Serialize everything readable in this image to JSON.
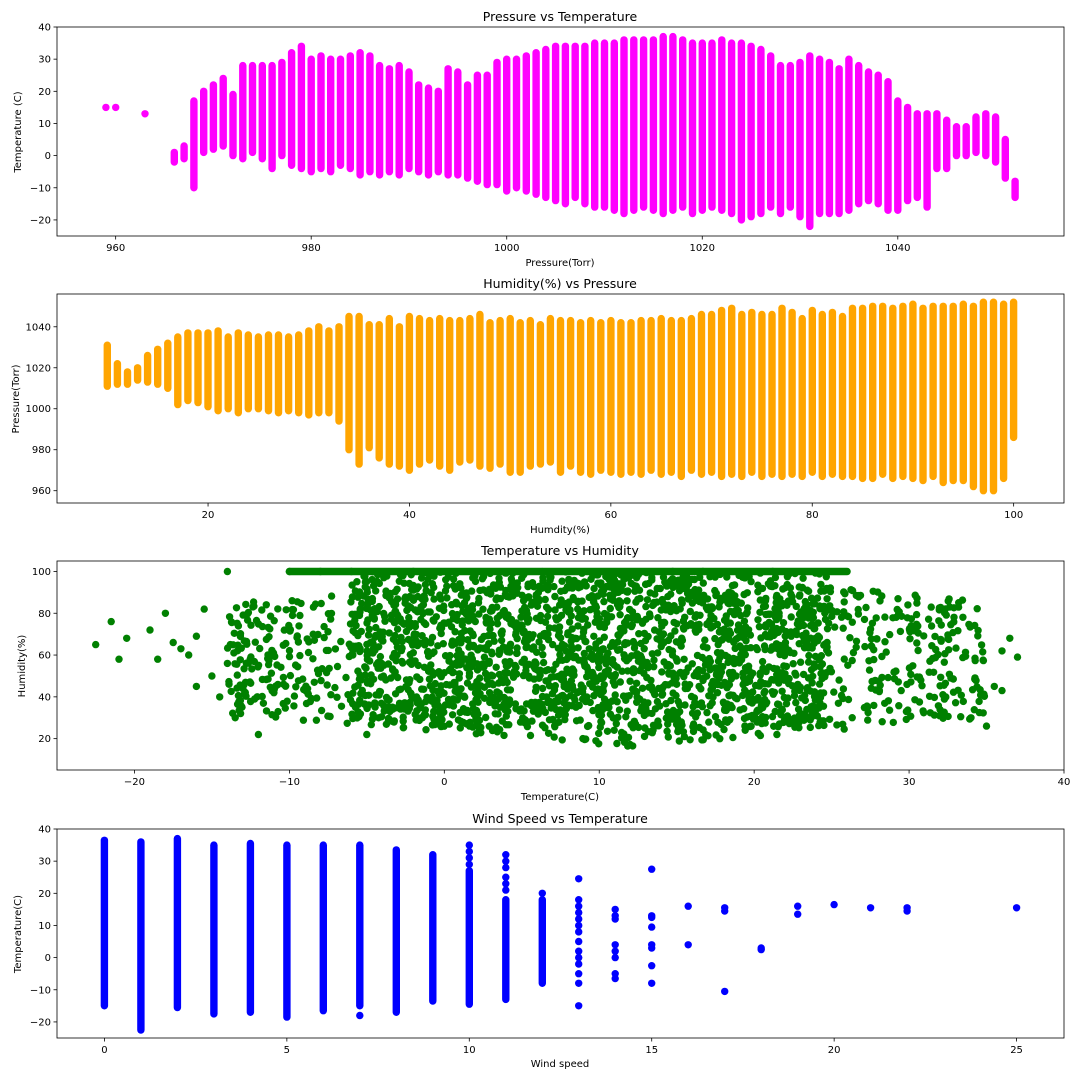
{
  "chart_data": [
    {
      "type": "scatter",
      "title": "Pressure vs Temperature",
      "xlabel": "Pressure(Torr)",
      "ylabel": "Temperature (C)",
      "xlim": [
        954,
        1057
      ],
      "ylim": [
        -25,
        40
      ],
      "xticks": [
        960,
        980,
        1000,
        1020,
        1040
      ],
      "yticks": [
        -20,
        -10,
        0,
        10,
        20,
        30,
        40
      ],
      "color": "#ff00ff",
      "columns": [
        [
          959,
          15,
          15
        ],
        [
          960,
          15,
          15
        ],
        [
          963,
          13,
          13
        ],
        [
          966,
          -2,
          1
        ],
        [
          967,
          -1,
          3
        ],
        [
          968,
          -10,
          17
        ],
        [
          969,
          1,
          20
        ],
        [
          970,
          2,
          22
        ],
        [
          971,
          3,
          24
        ],
        [
          972,
          0,
          19
        ],
        [
          973,
          -1,
          28
        ],
        [
          974,
          1,
          28
        ],
        [
          975,
          -1,
          28
        ],
        [
          976,
          -4,
          28
        ],
        [
          977,
          0,
          29
        ],
        [
          978,
          -3,
          32
        ],
        [
          979,
          -4,
          34
        ],
        [
          980,
          -5,
          30
        ],
        [
          981,
          -4,
          31
        ],
        [
          982,
          -5,
          30
        ],
        [
          983,
          -3,
          30
        ],
        [
          984,
          -4,
          31
        ],
        [
          985,
          -6,
          32
        ],
        [
          986,
          -5,
          31
        ],
        [
          987,
          -6,
          28
        ],
        [
          988,
          -5,
          27
        ],
        [
          989,
          -6,
          28
        ],
        [
          990,
          -4,
          26
        ],
        [
          991,
          -5,
          22
        ],
        [
          992,
          -6,
          21
        ],
        [
          993,
          -5,
          20
        ],
        [
          994,
          -6,
          27
        ],
        [
          995,
          -6,
          26
        ],
        [
          996,
          -7,
          22
        ],
        [
          997,
          -8,
          25
        ],
        [
          998,
          -9,
          25
        ],
        [
          999,
          -9,
          29
        ],
        [
          1000,
          -11,
          30
        ],
        [
          1001,
          -10,
          30
        ],
        [
          1002,
          -11,
          31
        ],
        [
          1003,
          -12,
          32
        ],
        [
          1004,
          -13,
          33
        ],
        [
          1005,
          -14,
          34
        ],
        [
          1006,
          -15,
          34
        ],
        [
          1007,
          -13,
          34
        ],
        [
          1008,
          -15,
          34
        ],
        [
          1009,
          -16,
          35
        ],
        [
          1010,
          -16,
          35
        ],
        [
          1011,
          -17,
          35
        ],
        [
          1012,
          -18,
          36
        ],
        [
          1013,
          -17,
          36
        ],
        [
          1014,
          -16,
          36
        ],
        [
          1015,
          -17,
          36
        ],
        [
          1016,
          -18,
          37
        ],
        [
          1017,
          -17,
          37
        ],
        [
          1018,
          -16,
          36
        ],
        [
          1019,
          -18,
          35
        ],
        [
          1020,
          -17,
          35
        ],
        [
          1021,
          -16,
          35
        ],
        [
          1022,
          -17,
          36
        ],
        [
          1023,
          -18,
          35
        ],
        [
          1024,
          -20,
          35
        ],
        [
          1025,
          -19,
          34
        ],
        [
          1026,
          -18,
          33
        ],
        [
          1027,
          -16,
          31
        ],
        [
          1028,
          -18,
          28
        ],
        [
          1029,
          -16,
          28
        ],
        [
          1030,
          -19,
          29
        ],
        [
          1031,
          -22,
          31
        ],
        [
          1032,
          -18,
          30
        ],
        [
          1033,
          -18,
          29
        ],
        [
          1034,
          -18,
          27
        ],
        [
          1035,
          -17,
          30
        ],
        [
          1036,
          -15,
          28
        ],
        [
          1037,
          -14,
          26
        ],
        [
          1038,
          -15,
          25
        ],
        [
          1039,
          -17,
          23
        ],
        [
          1040,
          -17,
          17
        ],
        [
          1041,
          -14,
          15
        ],
        [
          1042,
          -13,
          13
        ],
        [
          1043,
          -16,
          13
        ],
        [
          1044,
          -4,
          13
        ],
        [
          1045,
          -4,
          11
        ],
        [
          1046,
          0,
          9
        ],
        [
          1047,
          0,
          9
        ],
        [
          1048,
          1,
          12
        ],
        [
          1049,
          0,
          13
        ],
        [
          1050,
          -2,
          12
        ],
        [
          1051,
          -7,
          5
        ],
        [
          1052,
          -13,
          -8
        ]
      ]
    },
    {
      "type": "scatter",
      "title": "Humidity(%) vs Pressure",
      "xlabel": "Humdity(%)",
      "ylabel": "Pressure(Torr)",
      "xlim": [
        5,
        105
      ],
      "ylim": [
        954,
        1056
      ],
      "xticks": [
        20,
        40,
        60,
        80,
        100
      ],
      "yticks": [
        960,
        980,
        1000,
        1020,
        1040
      ],
      "color": "#ffa500",
      "columns": [
        [
          10,
          1011,
          1031
        ],
        [
          11,
          1012,
          1022
        ],
        [
          12,
          1012,
          1018
        ],
        [
          13,
          1014,
          1020
        ],
        [
          14,
          1013,
          1026
        ],
        [
          15,
          1012,
          1029
        ],
        [
          16,
          1010,
          1032
        ],
        [
          17,
          1002,
          1035
        ],
        [
          18,
          1004,
          1037
        ],
        [
          19,
          1003,
          1037
        ],
        [
          20,
          1001,
          1037
        ],
        [
          21,
          999,
          1038
        ],
        [
          22,
          1000,
          1035
        ],
        [
          23,
          998,
          1037
        ],
        [
          24,
          1000,
          1036
        ],
        [
          25,
          1000,
          1035
        ],
        [
          26,
          999,
          1036
        ],
        [
          27,
          998,
          1036
        ],
        [
          28,
          999,
          1035
        ],
        [
          29,
          998,
          1036
        ],
        [
          30,
          997,
          1038
        ],
        [
          31,
          998,
          1040
        ],
        [
          32,
          998,
          1038
        ],
        [
          33,
          994,
          1040
        ],
        [
          34,
          980,
          1045
        ],
        [
          35,
          973,
          1045
        ],
        [
          36,
          981,
          1041
        ],
        [
          37,
          976,
          1041
        ],
        [
          38,
          973,
          1044
        ],
        [
          39,
          972,
          1040
        ],
        [
          40,
          970,
          1045
        ],
        [
          41,
          973,
          1044
        ],
        [
          42,
          975,
          1043
        ],
        [
          43,
          972,
          1044
        ],
        [
          44,
          970,
          1043
        ],
        [
          45,
          974,
          1043
        ],
        [
          46,
          975,
          1044
        ],
        [
          47,
          972,
          1046
        ],
        [
          48,
          971,
          1042
        ],
        [
          49,
          973,
          1043
        ],
        [
          50,
          969,
          1044
        ],
        [
          51,
          969,
          1042
        ],
        [
          52,
          972,
          1043
        ],
        [
          53,
          973,
          1041
        ],
        [
          54,
          974,
          1044
        ],
        [
          55,
          969,
          1043
        ],
        [
          56,
          972,
          1043
        ],
        [
          57,
          969,
          1042
        ],
        [
          58,
          968,
          1043
        ],
        [
          59,
          970,
          1042
        ],
        [
          60,
          969,
          1043
        ],
        [
          61,
          968,
          1042
        ],
        [
          62,
          969,
          1042
        ],
        [
          63,
          968,
          1043
        ],
        [
          64,
          970,
          1043
        ],
        [
          65,
          968,
          1044
        ],
        [
          66,
          969,
          1043
        ],
        [
          67,
          967,
          1043
        ],
        [
          68,
          970,
          1044
        ],
        [
          69,
          968,
          1046
        ],
        [
          70,
          969,
          1046
        ],
        [
          71,
          967,
          1048
        ],
        [
          72,
          968,
          1049
        ],
        [
          73,
          967,
          1046
        ],
        [
          74,
          969,
          1047
        ],
        [
          75,
          967,
          1046
        ],
        [
          76,
          968,
          1046
        ],
        [
          77,
          967,
          1049
        ],
        [
          78,
          968,
          1047
        ],
        [
          79,
          967,
          1044
        ],
        [
          80,
          969,
          1048
        ],
        [
          81,
          967,
          1046
        ],
        [
          82,
          968,
          1047
        ],
        [
          83,
          967,
          1045
        ],
        [
          84,
          967,
          1049
        ],
        [
          85,
          966,
          1049
        ],
        [
          86,
          966,
          1050
        ],
        [
          87,
          968,
          1050
        ],
        [
          88,
          966,
          1049
        ],
        [
          89,
          967,
          1050
        ],
        [
          90,
          966,
          1051
        ],
        [
          91,
          965,
          1049
        ],
        [
          92,
          967,
          1050
        ],
        [
          93,
          964,
          1050
        ],
        [
          94,
          965,
          1050
        ],
        [
          95,
          965,
          1051
        ],
        [
          96,
          962,
          1050
        ],
        [
          97,
          960,
          1052
        ],
        [
          98,
          960,
          1052
        ],
        [
          99,
          966,
          1051
        ],
        [
          100,
          986,
          1052
        ]
      ]
    },
    {
      "type": "scatter",
      "title": "Temperature vs Humidity",
      "xlabel": "Temperature(C)",
      "ylabel": "Humidity(%)",
      "xlim": [
        -25,
        40
      ],
      "ylim": [
        5,
        105
      ],
      "xticks": [
        -20,
        -10,
        0,
        10,
        20,
        30,
        40
      ],
      "yticks": [
        20,
        40,
        60,
        80,
        100
      ],
      "color": "#008000",
      "points": [
        [
          -22.5,
          65
        ],
        [
          -21.5,
          76
        ],
        [
          -21,
          58
        ],
        [
          -20.5,
          68
        ],
        [
          -19,
          72
        ],
        [
          -18.5,
          58
        ],
        [
          -18,
          80
        ],
        [
          -17.5,
          66
        ],
        [
          -17,
          63
        ],
        [
          -16.5,
          60
        ],
        [
          -16,
          45
        ],
        [
          -16,
          69
        ],
        [
          -15.5,
          82
        ],
        [
          -15,
          50
        ],
        [
          -14.5,
          40
        ],
        [
          -14,
          56
        ],
        [
          -14,
          100
        ],
        [
          -13.5,
          30
        ],
        [
          -13,
          44
        ],
        [
          -12,
          22
        ],
        [
          -11,
          42
        ],
        [
          -10,
          100
        ],
        [
          -8,
          100
        ],
        [
          -6,
          100
        ],
        [
          -5,
          22
        ],
        [
          -2,
          100
        ],
        [
          34,
          30
        ],
        [
          35,
          26
        ],
        [
          36,
          43
        ],
        [
          36.5,
          68
        ],
        [
          37,
          59
        ],
        [
          36,
          62
        ],
        [
          35.5,
          45
        ]
      ],
      "dense": {
        "temperature_range": [
          -14,
          35
        ],
        "humidity_range": [
          12,
          100
        ],
        "core_temperature": [
          -6,
          25
        ],
        "core_humidity": [
          25,
          100
        ]
      }
    },
    {
      "type": "scatter",
      "title": "Wind Speed vs Temperature",
      "xlabel": "Wind speed",
      "ylabel": "Temperature(C)",
      "xlim": [
        -1.3,
        26.3
      ],
      "ylim": [
        -25,
        40
      ],
      "xticks": [
        0,
        5,
        10,
        15,
        20,
        25
      ],
      "yticks": [
        -20,
        -10,
        0,
        10,
        20,
        30,
        40
      ],
      "color": "#0000ff",
      "columns": [
        [
          0,
          -15,
          36.5
        ],
        [
          1,
          -22.5,
          36
        ],
        [
          2,
          -15.5,
          37
        ],
        [
          3,
          -17.5,
          35
        ],
        [
          4,
          -17,
          35.5
        ],
        [
          5,
          -18.5,
          35
        ],
        [
          6,
          -16.5,
          35
        ],
        [
          7,
          -15,
          35
        ],
        [
          8,
          -17,
          33.5
        ],
        [
          9,
          -13.5,
          32
        ],
        [
          10,
          -14.5,
          27
        ],
        [
          11,
          -13,
          18
        ],
        [
          12,
          -8,
          18
        ]
      ],
      "points": [
        [
          7,
          -18
        ],
        [
          10,
          29
        ],
        [
          10,
          31
        ],
        [
          10,
          33
        ],
        [
          10,
          35
        ],
        [
          11,
          21
        ],
        [
          11,
          23
        ],
        [
          11,
          25
        ],
        [
          11,
          28
        ],
        [
          11,
          30
        ],
        [
          11,
          32
        ],
        [
          12,
          20
        ],
        [
          13,
          24.5
        ],
        [
          13,
          -15
        ],
        [
          13,
          -8
        ],
        [
          13,
          -5
        ],
        [
          13,
          -2
        ],
        [
          13,
          0
        ],
        [
          13,
          2
        ],
        [
          13,
          5
        ],
        [
          13,
          8
        ],
        [
          13,
          10
        ],
        [
          13,
          12
        ],
        [
          13,
          14
        ],
        [
          13,
          16
        ],
        [
          13,
          18
        ],
        [
          14,
          15
        ],
        [
          14,
          13
        ],
        [
          14,
          12
        ],
        [
          14,
          4
        ],
        [
          14,
          2
        ],
        [
          14,
          0
        ],
        [
          14,
          -5
        ],
        [
          14,
          -6.5
        ],
        [
          15,
          27.5
        ],
        [
          15,
          13
        ],
        [
          15,
          12.5
        ],
        [
          15,
          9.5
        ],
        [
          15,
          4
        ],
        [
          15,
          3
        ],
        [
          15,
          -2.5
        ],
        [
          15,
          -8
        ],
        [
          16,
          16
        ],
        [
          16,
          4
        ],
        [
          17,
          15.5
        ],
        [
          17,
          14.5
        ],
        [
          17,
          -10.5
        ],
        [
          18,
          3
        ],
        [
          18,
          2.5
        ],
        [
          19,
          16
        ],
        [
          19,
          13.5
        ],
        [
          20,
          16.5
        ],
        [
          21,
          15.5
        ],
        [
          22,
          15.5
        ],
        [
          22,
          14.5
        ],
        [
          25,
          15.5
        ]
      ]
    }
  ]
}
